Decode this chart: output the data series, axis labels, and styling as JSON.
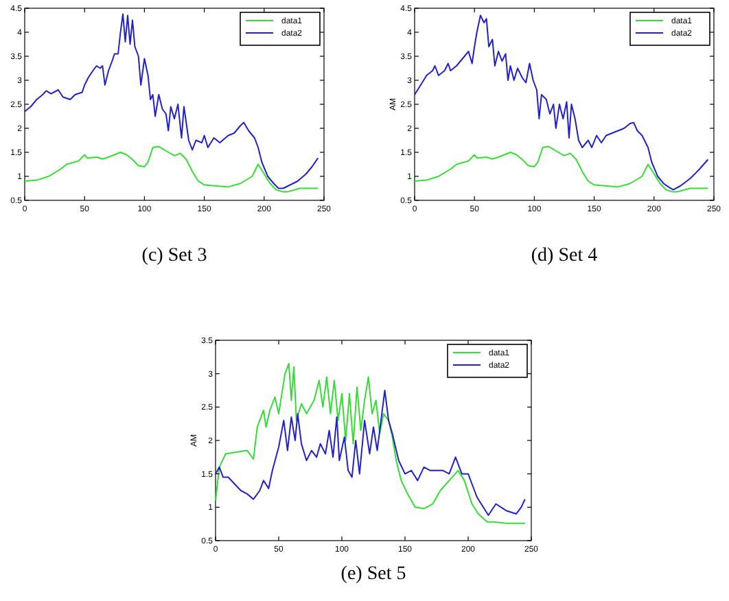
{
  "chart_data": [
    {
      "type": "line",
      "title": "(c) Set 3",
      "xlim": [
        0,
        250
      ],
      "xticks": [
        0,
        50,
        100,
        150,
        200,
        250
      ],
      "ylim": [
        0.5,
        4.5
      ],
      "yticks": [
        0.5,
        1,
        1.5,
        2,
        2.5,
        3,
        3.5,
        4,
        4.5
      ],
      "legend": "top right",
      "grid": false,
      "series": [
        {
          "name": "data1",
          "color": "#33dd33",
          "x": [
            0,
            10,
            20,
            30,
            35,
            45,
            50,
            52,
            60,
            65,
            70,
            80,
            85,
            90,
            95,
            100,
            103,
            107,
            112,
            120,
            125,
            130,
            135,
            140,
            145,
            150,
            160,
            170,
            180,
            190,
            195,
            200,
            205,
            210,
            215,
            220,
            230,
            240,
            245
          ],
          "values": [
            0.9,
            0.92,
            1.0,
            1.15,
            1.25,
            1.32,
            1.45,
            1.38,
            1.4,
            1.36,
            1.4,
            1.5,
            1.45,
            1.35,
            1.22,
            1.2,
            1.3,
            1.6,
            1.62,
            1.5,
            1.43,
            1.48,
            1.35,
            1.1,
            0.9,
            0.82,
            0.8,
            0.78,
            0.85,
            1.0,
            1.25,
            1.05,
            0.85,
            0.72,
            0.68,
            0.68,
            0.75,
            0.75,
            0.75
          ]
        },
        {
          "name": "data2",
          "color": "#2020cc",
          "x": [
            0,
            5,
            10,
            15,
            18,
            22,
            28,
            32,
            38,
            42,
            48,
            50,
            53,
            57,
            60,
            63,
            65,
            67,
            70,
            73,
            75,
            78,
            80,
            82,
            84,
            86,
            88,
            90,
            92,
            95,
            97,
            100,
            103,
            105,
            107,
            109,
            112,
            115,
            118,
            120,
            122,
            125,
            128,
            131,
            133,
            137,
            140,
            143,
            148,
            150,
            153,
            158,
            163,
            170,
            175,
            180,
            183,
            187,
            192,
            195,
            198,
            203,
            208,
            212,
            216,
            220,
            228,
            235,
            240,
            245
          ],
          "values": [
            2.35,
            2.45,
            2.6,
            2.7,
            2.78,
            2.72,
            2.8,
            2.65,
            2.6,
            2.7,
            2.75,
            2.9,
            3.05,
            3.2,
            3.3,
            3.25,
            3.3,
            2.9,
            3.2,
            3.4,
            3.55,
            3.55,
            4.0,
            4.38,
            3.8,
            4.35,
            3.75,
            4.25,
            3.7,
            3.5,
            2.9,
            3.45,
            3.1,
            2.6,
            2.7,
            2.25,
            2.7,
            2.4,
            2.3,
            1.95,
            2.45,
            2.2,
            2.5,
            1.8,
            2.45,
            1.75,
            1.55,
            1.75,
            1.7,
            1.85,
            1.6,
            1.8,
            1.7,
            1.85,
            1.9,
            2.05,
            2.12,
            1.95,
            1.8,
            1.6,
            1.3,
            1.0,
            0.85,
            0.75,
            0.75,
            0.8,
            0.9,
            1.05,
            1.2,
            1.38
          ]
        }
      ]
    },
    {
      "type": "line",
      "title": "(d) Set 4",
      "ylabel": "AM",
      "xlim": [
        0,
        250
      ],
      "xticks": [
        0,
        50,
        100,
        150,
        200,
        250
      ],
      "ylim": [
        0.5,
        4.5
      ],
      "yticks": [
        0.5,
        1,
        1.5,
        2,
        2.5,
        3,
        3.5,
        4,
        4.5
      ],
      "legend": "top right",
      "grid": false,
      "series": [
        {
          "name": "data1",
          "color": "#33dd33",
          "x": [
            0,
            10,
            20,
            30,
            35,
            45,
            50,
            52,
            60,
            65,
            70,
            80,
            85,
            90,
            95,
            100,
            103,
            107,
            112,
            120,
            125,
            130,
            135,
            140,
            145,
            150,
            160,
            170,
            180,
            190,
            195,
            200,
            205,
            210,
            215,
            220,
            230,
            240,
            245
          ],
          "values": [
            0.9,
            0.92,
            1.0,
            1.15,
            1.25,
            1.32,
            1.45,
            1.38,
            1.4,
            1.36,
            1.4,
            1.5,
            1.45,
            1.35,
            1.22,
            1.2,
            1.3,
            1.6,
            1.62,
            1.5,
            1.43,
            1.48,
            1.35,
            1.1,
            0.9,
            0.82,
            0.8,
            0.78,
            0.85,
            1.0,
            1.25,
            1.05,
            0.85,
            0.72,
            0.68,
            0.68,
            0.75,
            0.75,
            0.75
          ]
        },
        {
          "name": "data2",
          "color": "#2020cc",
          "x": [
            0,
            5,
            10,
            15,
            17,
            20,
            25,
            28,
            30,
            35,
            40,
            45,
            48,
            50,
            52,
            55,
            58,
            60,
            62,
            65,
            67,
            70,
            73,
            76,
            78,
            80,
            83,
            86,
            90,
            93,
            96,
            99,
            102,
            104,
            106,
            110,
            113,
            116,
            118,
            121,
            124,
            127,
            129,
            131,
            134,
            137,
            140,
            145,
            148,
            152,
            156,
            160,
            165,
            170,
            175,
            180,
            183,
            186,
            190,
            195,
            198,
            203,
            208,
            212,
            216,
            222,
            230,
            238,
            245
          ],
          "values": [
            2.7,
            2.9,
            3.1,
            3.2,
            3.3,
            3.1,
            3.2,
            3.35,
            3.2,
            3.3,
            3.45,
            3.6,
            3.35,
            3.7,
            4.0,
            4.35,
            4.2,
            4.28,
            3.7,
            3.85,
            3.3,
            3.6,
            3.4,
            3.55,
            3.0,
            3.3,
            3.0,
            3.25,
            3.05,
            2.95,
            3.35,
            3.0,
            2.8,
            2.2,
            2.7,
            2.6,
            2.3,
            2.5,
            2.0,
            2.5,
            2.2,
            2.55,
            1.8,
            2.5,
            2.2,
            1.75,
            1.6,
            1.75,
            1.6,
            1.85,
            1.7,
            1.85,
            1.9,
            1.95,
            2.0,
            2.1,
            2.12,
            1.95,
            1.85,
            1.6,
            1.3,
            1.0,
            0.85,
            0.78,
            0.72,
            0.8,
            0.95,
            1.15,
            1.35
          ]
        }
      ]
    },
    {
      "type": "line",
      "title": "(e) Set 5",
      "ylabel": "AM",
      "xlim": [
        0,
        250
      ],
      "xticks": [
        0,
        50,
        100,
        150,
        200,
        250
      ],
      "ylim": [
        0.5,
        3.5
      ],
      "yticks": [
        0.5,
        1,
        1.5,
        2,
        2.5,
        3,
        3.5
      ],
      "legend": "top right",
      "grid": false,
      "series": [
        {
          "name": "data1",
          "color": "#33dd33",
          "x": [
            0,
            3,
            8,
            15,
            25,
            30,
            33,
            38,
            40,
            43,
            47,
            50,
            55,
            58,
            60,
            62,
            64,
            68,
            72,
            78,
            82,
            85,
            88,
            91,
            94,
            97,
            100,
            103,
            106,
            109,
            112,
            115,
            118,
            121,
            124,
            127,
            130,
            133,
            137,
            140,
            143,
            147,
            152,
            158,
            165,
            172,
            178,
            185,
            192,
            197,
            203,
            208,
            215,
            220,
            230,
            245
          ],
          "values": [
            1.1,
            1.6,
            1.8,
            1.82,
            1.85,
            1.72,
            2.2,
            2.45,
            2.2,
            2.45,
            2.65,
            2.4,
            3.0,
            3.15,
            2.6,
            3.1,
            2.3,
            2.55,
            2.4,
            2.6,
            2.9,
            2.5,
            2.95,
            2.4,
            2.9,
            2.3,
            2.7,
            2.0,
            2.7,
            1.95,
            2.8,
            2.15,
            2.6,
            2.95,
            2.4,
            2.6,
            2.1,
            2.4,
            2.3,
            2.05,
            1.7,
            1.4,
            1.2,
            1.0,
            0.98,
            1.05,
            1.25,
            1.4,
            1.55,
            1.4,
            1.05,
            0.9,
            0.78,
            0.78,
            0.76,
            0.76
          ]
        },
        {
          "name": "data2",
          "color": "#2020cc",
          "x": [
            0,
            3,
            6,
            10,
            15,
            20,
            25,
            30,
            35,
            38,
            42,
            45,
            50,
            54,
            57,
            60,
            63,
            65,
            68,
            72,
            76,
            80,
            83,
            87,
            90,
            93,
            96,
            98,
            102,
            105,
            108,
            111,
            114,
            118,
            122,
            125,
            128,
            131,
            134,
            137,
            140,
            145,
            150,
            155,
            160,
            165,
            170,
            180,
            185,
            190,
            195,
            200,
            203,
            207,
            212,
            216,
            222,
            230,
            238,
            242,
            245
          ],
          "values": [
            1.5,
            1.6,
            1.45,
            1.45,
            1.35,
            1.25,
            1.2,
            1.12,
            1.25,
            1.4,
            1.28,
            1.55,
            1.9,
            2.3,
            1.85,
            2.35,
            2.0,
            2.4,
            1.95,
            1.7,
            1.85,
            1.75,
            1.95,
            1.8,
            2.15,
            1.75,
            2.35,
            1.7,
            2.05,
            1.55,
            1.45,
            2.0,
            1.5,
            2.3,
            1.8,
            2.2,
            1.85,
            2.3,
            2.75,
            2.3,
            2.1,
            1.7,
            1.5,
            1.55,
            1.4,
            1.6,
            1.55,
            1.55,
            1.5,
            1.75,
            1.5,
            1.5,
            1.35,
            1.15,
            1.0,
            0.88,
            1.05,
            0.95,
            0.9,
            1.0,
            1.12
          ]
        }
      ]
    }
  ]
}
